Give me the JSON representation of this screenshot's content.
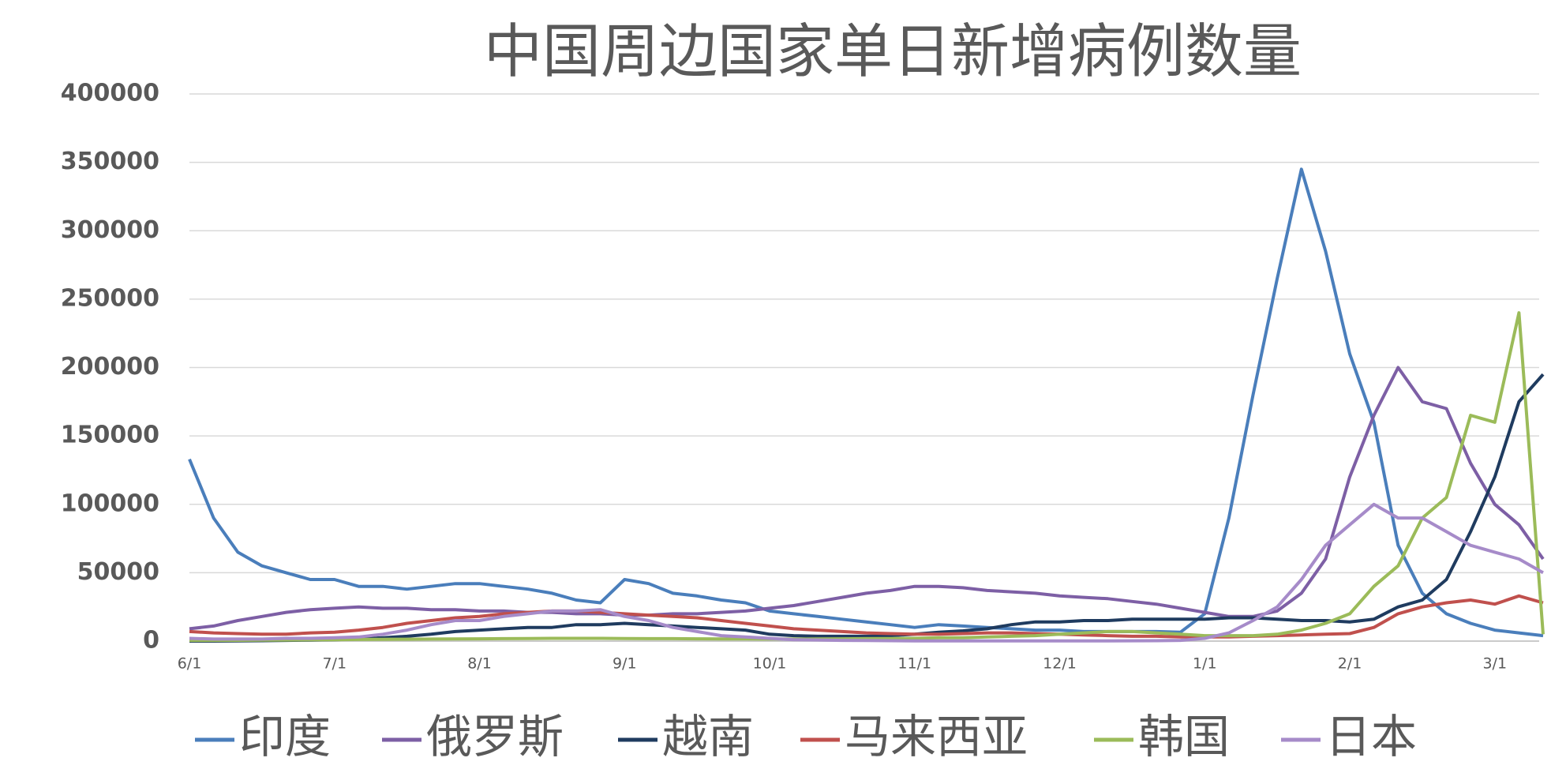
{
  "chart_data": {
    "type": "line",
    "title": "中国周边国家单日新增病例数量",
    "categories": [
      "6/1",
      null,
      null,
      null,
      null,
      null,
      "7/1",
      null,
      null,
      null,
      null,
      null,
      "8/1",
      null,
      null,
      null,
      null,
      null,
      "9/1",
      null,
      null,
      null,
      null,
      null,
      "10/1",
      null,
      null,
      null,
      null,
      null,
      "11/1",
      null,
      null,
      null,
      null,
      null,
      "12/1",
      null,
      null,
      null,
      null,
      null,
      "1/1",
      null,
      null,
      null,
      null,
      null,
      "2/1",
      null,
      null,
      null,
      null,
      null,
      "3/1",
      null,
      null
    ],
    "series": [
      {
        "name": "印度",
        "color": "#4a7ebb",
        "values": [
          133000,
          90000,
          65000,
          55000,
          50000,
          45000,
          45000,
          40000,
          40000,
          38000,
          40000,
          42000,
          42000,
          40000,
          38000,
          35000,
          30000,
          28000,
          45000,
          42000,
          35000,
          33000,
          30000,
          28000,
          22000,
          20000,
          18000,
          16000,
          14000,
          12000,
          10000,
          12000,
          11000,
          10000,
          9000,
          8000,
          8000,
          7000,
          7000,
          7000,
          7000,
          6500,
          20000,
          90000,
          180000,
          265000,
          345000,
          285000,
          210000,
          160000,
          70000,
          35000,
          20000,
          13000,
          8000,
          6000,
          4000
        ]
      },
      {
        "name": "俄罗斯",
        "color": "#7d5fa5",
        "values": [
          9000,
          11000,
          15000,
          18000,
          21000,
          23000,
          24000,
          25000,
          24000,
          24000,
          23000,
          23000,
          22000,
          22000,
          21000,
          21000,
          20000,
          20000,
          19000,
          19000,
          20000,
          20000,
          21000,
          22000,
          24000,
          26000,
          29000,
          32000,
          35000,
          37000,
          40000,
          40000,
          39000,
          37000,
          36000,
          35000,
          33000,
          32000,
          31000,
          29000,
          27000,
          24000,
          21000,
          18000,
          18000,
          22000,
          35000,
          60000,
          120000,
          165000,
          200000,
          175000,
          170000,
          130000,
          100000,
          85000,
          60000
        ]
      },
      {
        "name": "越南",
        "color": "#1f3b5f",
        "values": [
          0,
          0,
          100,
          300,
          500,
          700,
          1000,
          1500,
          2500,
          3500,
          5000,
          7000,
          8000,
          9000,
          10000,
          10000,
          12000,
          12000,
          13000,
          12000,
          11000,
          10000,
          9000,
          8000,
          5000,
          4000,
          3500,
          3500,
          3500,
          4000,
          5000,
          6500,
          7500,
          9000,
          12000,
          14000,
          14000,
          15000,
          15000,
          16000,
          16000,
          16000,
          16000,
          17000,
          17000,
          16000,
          15000,
          15000,
          14000,
          16000,
          25000,
          30000,
          45000,
          80000,
          120000,
          175000,
          195000
        ]
      },
      {
        "name": "马来西亚",
        "color": "#c0504d",
        "values": [
          7000,
          6000,
          5500,
          5000,
          5000,
          6000,
          6500,
          8000,
          10000,
          13000,
          15000,
          17000,
          18000,
          20000,
          21000,
          22000,
          22000,
          21000,
          20000,
          19000,
          18000,
          17000,
          15000,
          13000,
          11000,
          9000,
          8000,
          7000,
          6000,
          5500,
          5000,
          5000,
          5500,
          6000,
          6000,
          5500,
          5000,
          4500,
          4000,
          3500,
          3500,
          3000,
          3000,
          3000,
          3500,
          4000,
          4500,
          5000,
          5500,
          10000,
          20000,
          25000,
          28000,
          30000,
          27000,
          33000,
          28000
        ]
      },
      {
        "name": "韩国",
        "color": "#9bbb59",
        "values": [
          500,
          500,
          600,
          700,
          800,
          900,
          1000,
          1200,
          1300,
          1400,
          1500,
          1600,
          1700,
          1800,
          1900,
          2000,
          2000,
          2000,
          1900,
          1800,
          1800,
          1700,
          1600,
          1600,
          1500,
          1500,
          1600,
          1700,
          1800,
          1900,
          2000,
          2500,
          2500,
          3000,
          3500,
          4000,
          5000,
          6000,
          7000,
          7000,
          6000,
          5000,
          4000,
          4000,
          4000,
          5000,
          8000,
          13000,
          20000,
          40000,
          55000,
          90000,
          105000,
          165000,
          160000,
          240000,
          5000
        ]
      },
      {
        "name": "日本",
        "color": "#a68bc9",
        "values": [
          2000,
          1500,
          1500,
          1500,
          2000,
          2000,
          2500,
          3000,
          5000,
          8000,
          12000,
          15000,
          15000,
          18000,
          20000,
          22000,
          22000,
          23000,
          18000,
          15000,
          10000,
          7000,
          4000,
          3000,
          2000,
          1000,
          800,
          500,
          400,
          300,
          200,
          200,
          200,
          200,
          150,
          150,
          150,
          150,
          200,
          250,
          300,
          500,
          2000,
          6000,
          15000,
          25000,
          45000,
          70000,
          85000,
          100000,
          90000,
          90000,
          80000,
          70000,
          65000,
          60000,
          50000
        ]
      }
    ],
    "ylim": [
      0,
      400000
    ],
    "yticks": [
      0,
      50000,
      100000,
      150000,
      200000,
      250000,
      300000,
      350000,
      400000
    ],
    "grid": true
  }
}
